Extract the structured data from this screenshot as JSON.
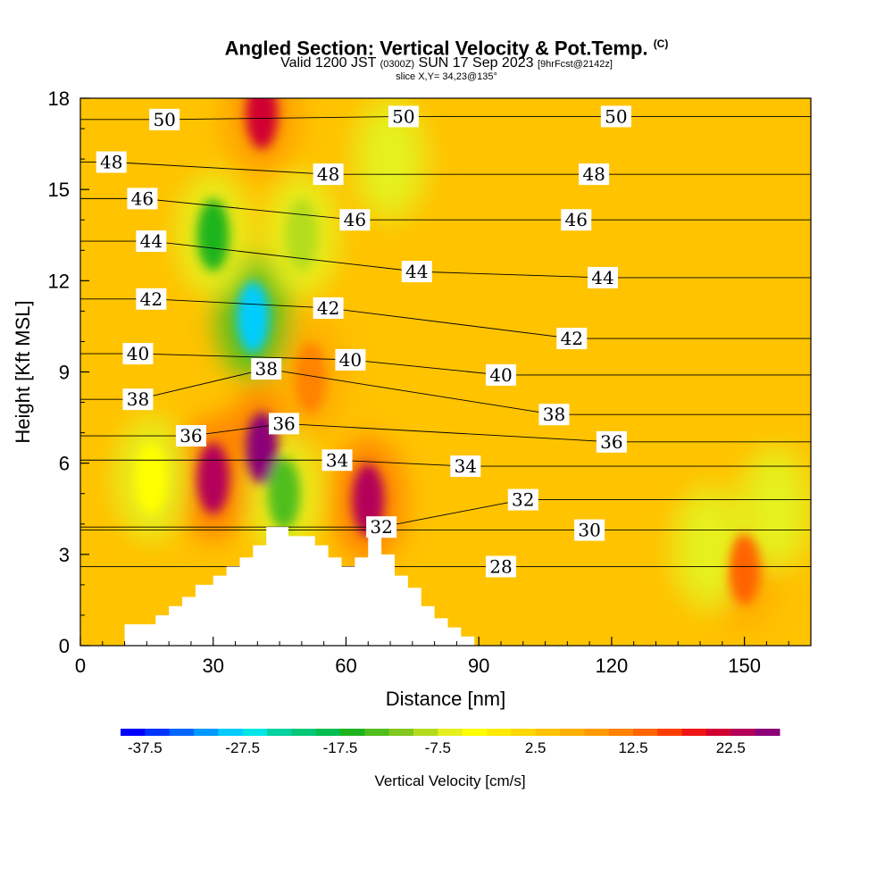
{
  "header": {
    "title_main": "Angled Section: Vertical Velocity & Pot.Temp.",
    "title_unit": "(C)",
    "valid_prefix": "Valid 1200 JST",
    "valid_utc": "(0300Z)",
    "valid_date": "SUN 17 Sep 2023",
    "forecast": "[9hrFcst@2142z]",
    "slice": "slice X,Y= 34,23@135°"
  },
  "chart_data": {
    "type": "heatmap",
    "xlabel": "Distance [nm]",
    "ylabel": "Height [Kft MSL]",
    "xlim": [
      0,
      165
    ],
    "ylim": [
      0,
      18
    ],
    "x_ticks": [
      "0",
      "30",
      "60",
      "90",
      "120",
      "150"
    ],
    "x_tick_values": [
      0,
      30,
      60,
      90,
      120,
      150
    ],
    "y_ticks": [
      "0",
      "3",
      "6",
      "9",
      "12",
      "15",
      "18"
    ],
    "y_tick_values": [
      0,
      3,
      6,
      9,
      12,
      15,
      18
    ],
    "colorbar": {
      "title": "Vertical Velocity [cm/s]",
      "tick_labels": [
        "-37.5",
        "-27.5",
        "-17.5",
        "-7.5",
        "2.5",
        "12.5",
        "22.5"
      ],
      "tick_values": [
        -37.5,
        -27.5,
        -17.5,
        -7.5,
        2.5,
        12.5,
        22.5
      ],
      "range": [
        -40,
        27.5
      ],
      "step": 2.5,
      "colors": [
        "#0000ff",
        "#0033ff",
        "#0066ff",
        "#0099ff",
        "#00ccff",
        "#00e6e6",
        "#00d2a0",
        "#00c878",
        "#00be50",
        "#1eb41e",
        "#50be1e",
        "#82c81e",
        "#b4dc1e",
        "#e6f01e",
        "#ffff00",
        "#ffeb00",
        "#ffd700",
        "#ffc300",
        "#ffaf00",
        "#ff9b00",
        "#ff8200",
        "#ff6400",
        "#ff3c00",
        "#f01414",
        "#d20032",
        "#b4005a",
        "#8c0078"
      ]
    },
    "terrain_nm": [
      0,
      10,
      10,
      17,
      17,
      20,
      20,
      23,
      23,
      26,
      26,
      30,
      30,
      33,
      33,
      36,
      36,
      39,
      39,
      42,
      42,
      47,
      47,
      53,
      53,
      56,
      56,
      59,
      59,
      62,
      62,
      65,
      65,
      68,
      68,
      71,
      71,
      74,
      74,
      77,
      77,
      80,
      80,
      83,
      83,
      86,
      86,
      89
    ],
    "terrain_kft": [
      0,
      0,
      0.7,
      0.7,
      1.0,
      1.0,
      1.3,
      1.3,
      1.6,
      1.6,
      2.0,
      2.0,
      2.3,
      2.3,
      2.6,
      2.6,
      2.9,
      2.9,
      3.3,
      3.3,
      3.9,
      3.9,
      3.6,
      3.6,
      3.3,
      3.3,
      2.9,
      2.9,
      2.6,
      2.6,
      2.9,
      2.9,
      3.6,
      3.6,
      3.0,
      3.0,
      2.3,
      2.3,
      1.9,
      1.9,
      1.3,
      1.3,
      0.9,
      0.9,
      0.6,
      0.6,
      0.3,
      0.3
    ],
    "updraft_centers": [
      {
        "x": 30,
        "y": 5.5,
        "w": 23
      },
      {
        "x": 41,
        "y": 6.5,
        "w": 27
      },
      {
        "x": 41,
        "y": 17.5,
        "w": 22
      },
      {
        "x": 65,
        "y": 4.8,
        "w": 24
      },
      {
        "x": 52,
        "y": 8.8,
        "w": 12
      },
      {
        "x": 150,
        "y": 2.5,
        "w": 14
      }
    ],
    "downdraft_centers": [
      {
        "x": 39,
        "y": 10.8,
        "w": -28
      },
      {
        "x": 30,
        "y": 13.5,
        "w": -16
      },
      {
        "x": 46,
        "y": 5.0,
        "w": -14
      },
      {
        "x": 50,
        "y": 13.5,
        "w": -9
      },
      {
        "x": 70,
        "y": 16.0,
        "w": -6
      },
      {
        "x": 142,
        "y": 3.2,
        "w": -6
      },
      {
        "x": 157,
        "y": 4.5,
        "w": -6
      },
      {
        "x": 16,
        "y": 5.5,
        "w": -5
      }
    ],
    "contours": [
      {
        "label": "50",
        "label_positions": [
          [
            19,
            17.3
          ],
          [
            73,
            17.4
          ],
          [
            121,
            17.4
          ]
        ]
      },
      {
        "label": "48",
        "label_positions": [
          [
            7,
            15.9
          ],
          [
            56,
            15.5
          ],
          [
            116,
            15.5
          ]
        ]
      },
      {
        "label": "46",
        "label_positions": [
          [
            14,
            14.7
          ],
          [
            62,
            14.0
          ],
          [
            112,
            14.0
          ]
        ]
      },
      {
        "label": "44",
        "label_positions": [
          [
            16,
            13.3
          ],
          [
            76,
            12.3
          ],
          [
            118,
            12.1
          ]
        ]
      },
      {
        "label": "42",
        "label_positions": [
          [
            16,
            11.4
          ],
          [
            56,
            11.1
          ],
          [
            111,
            10.1
          ]
        ]
      },
      {
        "label": "40",
        "label_positions": [
          [
            13,
            9.6
          ],
          [
            61,
            9.4
          ],
          [
            95,
            8.9
          ]
        ]
      },
      {
        "label": "38",
        "label_positions": [
          [
            13,
            8.1
          ],
          [
            42,
            9.1
          ],
          [
            107,
            7.6
          ]
        ]
      },
      {
        "label": "36",
        "label_positions": [
          [
            25,
            6.9
          ],
          [
            46,
            7.3
          ],
          [
            120,
            6.7
          ]
        ]
      },
      {
        "label": "34",
        "label_positions": [
          [
            58,
            6.1
          ],
          [
            87,
            5.9
          ]
        ]
      },
      {
        "label": "32",
        "label_positions": [
          [
            68,
            3.9
          ],
          [
            100,
            4.8
          ]
        ]
      },
      {
        "label": "30",
        "label_positions": [
          [
            115,
            3.8
          ]
        ]
      },
      {
        "label": "28",
        "label_positions": [
          [
            95,
            2.6
          ]
        ]
      }
    ]
  }
}
